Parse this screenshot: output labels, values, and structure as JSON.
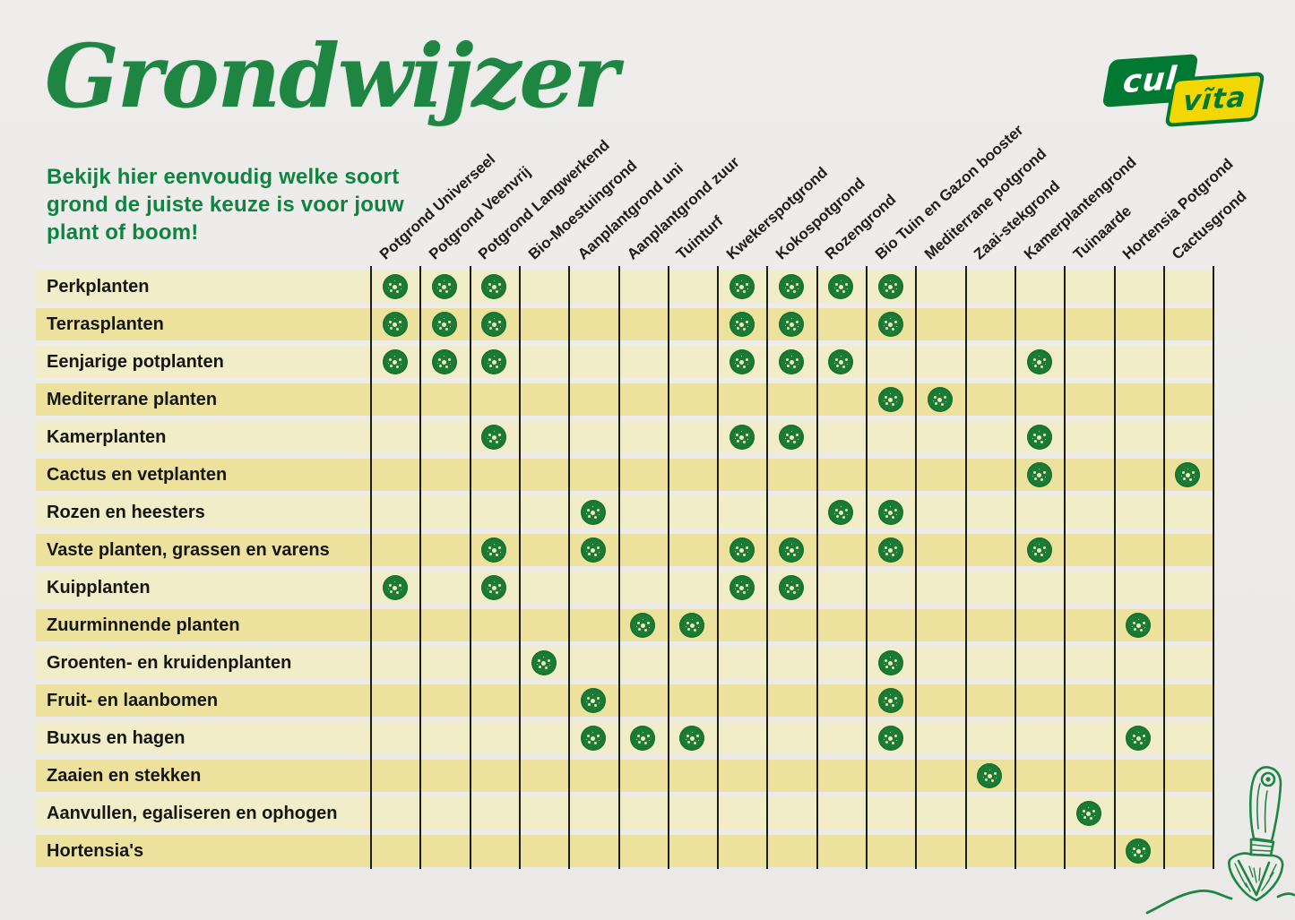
{
  "header": {
    "title": "Grondwijzer",
    "subtitle_lines": [
      "Bekijk hier eenvoudig welke soort",
      "grond de juiste keuze is voor jouw",
      "plant of boom!"
    ],
    "logo": {
      "left_text": "cul",
      "right_text": "vĩta"
    }
  },
  "colors": {
    "title_green": "#1E8642",
    "subtitle_green": "#0E8440",
    "logo_green": "#007A33",
    "logo_yellow": "#F2D800",
    "band_light": "#F2EDC9",
    "band_dark": "#ECE29E",
    "dot_green": "#1B7D35",
    "grid_line": "#1C1C1A",
    "paper": "#EDECEA"
  },
  "icons": {
    "mark": "plant-speckle-dot",
    "corner_illustration": "trowel-in-soil"
  },
  "chart_data": {
    "type": "table",
    "title": "Grondwijzer",
    "columns": [
      "Potgrond Universeel",
      "Potgrond Veenvrij",
      "Potgrond Langwerkend",
      "Bio-Moestuingrond",
      "Aanplantgrond uni",
      "Aanplantgrond zuur",
      "Tuinturf",
      "Kwekerspotgrond",
      "Kokospotgrond",
      "Rozengrond",
      "Bio Tuin en Gazon booster",
      "Mediterrane potgrond",
      "Zaai-stekgrond",
      "Kamerplantengrond",
      "Tuinaarde",
      "Hortensia Potgrond",
      "Cactusgrond"
    ],
    "rows": [
      {
        "label": "Perkplanten",
        "marks": [
          1,
          2,
          3,
          8,
          9,
          10,
          11
        ]
      },
      {
        "label": "Terrasplanten",
        "marks": [
          1,
          2,
          3,
          8,
          9,
          11
        ]
      },
      {
        "label": "Eenjarige potplanten",
        "marks": [
          1,
          2,
          3,
          8,
          9,
          10,
          14
        ]
      },
      {
        "label": "Mediterrane planten",
        "marks": [
          11,
          12
        ]
      },
      {
        "label": "Kamerplanten",
        "marks": [
          3,
          8,
          9,
          14
        ]
      },
      {
        "label": "Cactus en vetplanten",
        "marks": [
          14,
          17
        ]
      },
      {
        "label": "Rozen en heesters",
        "marks": [
          5,
          10,
          11
        ]
      },
      {
        "label": "Vaste planten, grassen en varens",
        "marks": [
          3,
          5,
          8,
          9,
          11,
          14
        ]
      },
      {
        "label": "Kuipplanten",
        "marks": [
          1,
          3,
          8,
          9
        ]
      },
      {
        "label": "Zuurminnende planten",
        "marks": [
          6,
          7,
          16
        ]
      },
      {
        "label": "Groenten- en kruidenplanten",
        "marks": [
          4,
          11
        ]
      },
      {
        "label": "Fruit- en laanbomen",
        "marks": [
          5,
          11
        ]
      },
      {
        "label": "Buxus en hagen",
        "marks": [
          5,
          6,
          7,
          11,
          16
        ]
      },
      {
        "label": "Zaaien en stekken",
        "marks": [
          13
        ]
      },
      {
        "label": "Aanvullen, egaliseren en ophogen",
        "marks": [
          15
        ]
      },
      {
        "label": "Hortensia's",
        "marks": [
          16
        ]
      }
    ]
  }
}
